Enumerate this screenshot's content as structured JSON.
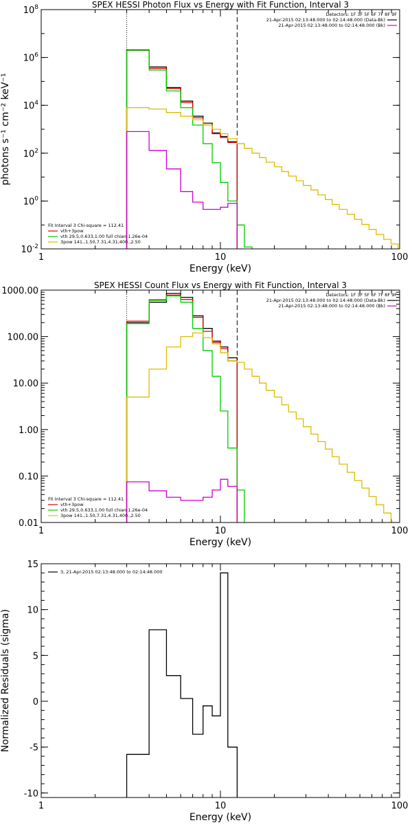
{
  "chart_data": [
    {
      "type": "line",
      "title": "SPEX HESSI Photon Flux vs Energy with Fit Function, Interval 3",
      "xlabel": "Energy (keV)",
      "ylabel": "photons s⁻¹ cm⁻² keV⁻¹",
      "xscale": "log",
      "yscale": "log",
      "xlim": [
        1,
        100
      ],
      "ylim": [
        0.01,
        100000000
      ],
      "xticks": [
        {
          "v": 1,
          "label": "1"
        },
        {
          "v": 10,
          "label": "10"
        },
        {
          "v": 100,
          "label": "100"
        }
      ],
      "yticks": [
        {
          "v": 0.01,
          "label": "10",
          "exp": "-2"
        },
        {
          "v": 1,
          "label": "10",
          "exp": "0"
        },
        {
          "v": 100,
          "label": "10",
          "exp": "2"
        },
        {
          "v": 10000,
          "label": "10",
          "exp": "4"
        },
        {
          "v": 1000000,
          "label": "10",
          "exp": "6"
        },
        {
          "v": 100000000,
          "label": "10",
          "exp": "8"
        }
      ],
      "vlines": [
        {
          "x": 3,
          "style": "dotted"
        },
        {
          "x": 12.4,
          "style": "dashed"
        }
      ],
      "legend_right": {
        "header": "Detectors: 1F 3F 5F 6F 7F 8F 9F",
        "entries": [
          {
            "text": "21-Apr-2015 02:13:48.000 to 02:14:48.000 (Data-Bk)",
            "color": "#000000"
          },
          {
            "text": "21-Apr-2015 02:13:48.000 to 02:14:48.000 (Bk)",
            "color": "#cc00cc"
          }
        ]
      },
      "legend_left": {
        "header": "Fit Interval 3   Chi-square = 112.41",
        "entries": [
          {
            "text": "vth+3pow",
            "color": "#dd0000"
          },
          {
            "text": "vth 29.5,0.633,1.00  full chian 1.26e-04",
            "color": "#00cc00"
          },
          {
            "text": "3pow 141.,1.50,7.31,4.31,400.,2.50",
            "color": "#ddbb00"
          }
        ]
      },
      "series": [
        {
          "color": "#000000",
          "step": true,
          "edges": [
            3,
            4,
            5,
            6,
            7,
            8,
            9,
            10,
            11,
            12.4
          ],
          "values": [
            2000000,
            400000,
            55000,
            15000,
            3500,
            1800,
            700,
            500,
            300
          ]
        },
        {
          "color": "#dd0000",
          "step": true,
          "edges": [
            3,
            4,
            5,
            6,
            7,
            8,
            9,
            10,
            11,
            12.4
          ],
          "values": [
            2100000,
            350000,
            50000,
            13000,
            3000,
            1500,
            650,
            450,
            280
          ]
        },
        {
          "color": "#00cc00",
          "step": true,
          "edges": [
            3,
            4,
            5,
            6,
            7,
            8,
            9,
            10,
            11,
            12.4,
            13.6,
            15
          ],
          "values": [
            2000000,
            300000,
            40000,
            8000,
            1500,
            250,
            40,
            6,
            1,
            0.1,
            0.012
          ]
        },
        {
          "color": "#ddbb00",
          "step": true,
          "edges": [
            3,
            4,
            5,
            6,
            7,
            8,
            9,
            10,
            11,
            12.4,
            13.6,
            15,
            16.5,
            18,
            20,
            22,
            24,
            26.5,
            29,
            32,
            35,
            38.5,
            42,
            46,
            51,
            56,
            61.5,
            67.5,
            74,
            81.5,
            89.5,
            98
          ],
          "values": [
            8000,
            7000,
            5000,
            3500,
            2500,
            1500,
            1000,
            650,
            400,
            250,
            160,
            100,
            65,
            42,
            27,
            17,
            11,
            7,
            4.5,
            2.9,
            1.8,
            1.15,
            0.72,
            0.45,
            0.28,
            0.17,
            0.105,
            0.065,
            0.04,
            0.025,
            0.016
          ]
        },
        {
          "color": "#cc00cc",
          "step": true,
          "edges": [
            3,
            4,
            5,
            6,
            7,
            8,
            9,
            10,
            11,
            12.4
          ],
          "values": [
            800,
            130,
            22,
            2.5,
            0.9,
            0.45,
            0.45,
            0.55,
            0.8
          ]
        }
      ]
    },
    {
      "type": "line",
      "title": "SPEX HESSI Count Flux vs Energy with Fit Function, Interval 3",
      "xlabel": "Energy (keV)",
      "ylabel": "",
      "xscale": "log",
      "yscale": "log",
      "xlim": [
        1,
        100
      ],
      "ylim": [
        0.01,
        1000
      ],
      "xticks": [
        {
          "v": 1,
          "label": "1"
        },
        {
          "v": 10,
          "label": "10"
        },
        {
          "v": 100,
          "label": "100"
        }
      ],
      "yticks": [
        {
          "v": 0.01,
          "label": "0.01"
        },
        {
          "v": 0.1,
          "label": "0.10"
        },
        {
          "v": 1,
          "label": "1.00"
        },
        {
          "v": 10,
          "label": "10.00"
        },
        {
          "v": 100,
          "label": "100.00"
        },
        {
          "v": 1000,
          "label": "1000.00"
        }
      ],
      "vlines": [
        {
          "x": 3,
          "style": "dotted"
        },
        {
          "x": 12.4,
          "style": "dashed"
        }
      ],
      "legend_right": {
        "header": "Detectors: 1F 3F 5F 6F 7F 8F 9F",
        "entries": [
          {
            "text": "21-Apr-2015 02:13:48.000 to 02:14:48.000 (Data-Bk)",
            "color": "#000000"
          },
          {
            "text": "21-Apr-2015 02:13:48.000 to 02:14:48.000 (Bk)",
            "color": "#cc00cc"
          }
        ]
      },
      "legend_left": {
        "header": "Fit Interval 3   Chi-square = 112.41",
        "entries": [
          {
            "text": "vth+3pow",
            "color": "#dd0000"
          },
          {
            "text": "vth 29.5,0.633,1.00  full chian 1.26e-04",
            "color": "#00cc00"
          },
          {
            "text": "3pow 141.,1.50,7.31,4.31,400.,2.50",
            "color": "#ddbb00"
          }
        ]
      },
      "series": [
        {
          "color": "#000000",
          "step": true,
          "edges": [
            3,
            4,
            5,
            6,
            7,
            8,
            9,
            10,
            11,
            12.4
          ],
          "values": [
            200,
            550,
            850,
            700,
            280,
            150,
            80,
            60,
            35
          ]
        },
        {
          "color": "#dd0000",
          "step": true,
          "edges": [
            3,
            4,
            5,
            6,
            7,
            8,
            9,
            10,
            11,
            12.4
          ],
          "values": [
            215,
            620,
            780,
            630,
            260,
            130,
            75,
            55,
            30
          ]
        },
        {
          "color": "#00cc00",
          "step": true,
          "edges": [
            3,
            4,
            5,
            6,
            7,
            8,
            9,
            10,
            11,
            12.4,
            13.6
          ],
          "values": [
            190,
            600,
            750,
            550,
            150,
            50,
            14,
            2.5,
            0.4,
            0.05
          ]
        },
        {
          "color": "#ddbb00",
          "step": true,
          "edges": [
            3,
            4,
            5,
            6,
            7,
            8,
            9,
            10,
            11,
            12.4,
            13.6,
            15,
            16.5,
            18,
            20,
            22,
            24,
            26.5,
            29,
            32,
            35,
            38.5,
            42,
            46,
            51,
            56,
            61.5,
            67.5,
            74,
            81.5,
            89.5,
            98
          ],
          "values": [
            5,
            20,
            60,
            100,
            120,
            95,
            70,
            45,
            30,
            28,
            20,
            14,
            10,
            7,
            5,
            3.4,
            2.4,
            1.7,
            1.15,
            0.8,
            0.55,
            0.38,
            0.26,
            0.18,
            0.12,
            0.08,
            0.055,
            0.036,
            0.024,
            0.016,
            0.01
          ]
        },
        {
          "color": "#cc00cc",
          "step": true,
          "edges": [
            3,
            4,
            5,
            6,
            7,
            8,
            9,
            10,
            11,
            12.4
          ],
          "values": [
            0.075,
            0.048,
            0.035,
            0.03,
            0.03,
            0.035,
            0.05,
            0.085,
            0.06
          ]
        }
      ]
    },
    {
      "type": "line",
      "title": "",
      "xlabel": "Energy (keV)",
      "ylabel": "Normalized Residuals (sigma)",
      "xscale": "log",
      "yscale": "linear",
      "xlim": [
        1,
        100
      ],
      "ylim": [
        -10.5,
        15
      ],
      "xticks": [
        {
          "v": 1,
          "label": "1"
        },
        {
          "v": 10,
          "label": "10"
        },
        {
          "v": 100,
          "label": "100"
        }
      ],
      "yticks": [
        {
          "v": -10,
          "label": "-10"
        },
        {
          "v": -5,
          "label": "-5"
        },
        {
          "v": 0,
          "label": "0"
        },
        {
          "v": 5,
          "label": "5"
        },
        {
          "v": 10,
          "label": "10"
        },
        {
          "v": 15,
          "label": "15"
        }
      ],
      "vlines": [],
      "legend_right": null,
      "legend_left": {
        "header": "",
        "entries": [
          {
            "text": "3, 21-Apr-2015 02:13:48.000 to 02:14:48.000",
            "color": "#000000"
          }
        ]
      },
      "series": [
        {
          "color": "#000000",
          "step": true,
          "edges": [
            3,
            4,
            5,
            6,
            7,
            8,
            9,
            10,
            11,
            12.4
          ],
          "values": [
            -5.8,
            7.8,
            2.8,
            0.3,
            -3.6,
            -0.5,
            -1.6,
            14,
            -5
          ]
        }
      ]
    }
  ]
}
